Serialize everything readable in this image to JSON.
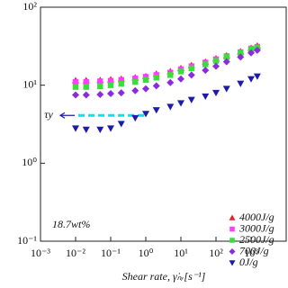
{
  "chart_data": {
    "type": "scatter",
    "log_x": true,
    "log_y": true,
    "x_label": "Shear rate, γ̇ₙᵣ[s⁻¹]",
    "annotation": "18.7wt%",
    "yield_stress": {
      "label": "τy",
      "value": 4.1,
      "x": [
        0.012,
        1
      ],
      "color": "#00e5ee"
    },
    "x": [
      0.01,
      0.02,
      0.05,
      0.1,
      0.2,
      0.5,
      1,
      2,
      5,
      10,
      20,
      50,
      100,
      200,
      500,
      1000,
      1500
    ],
    "series": [
      {
        "name": "4000J/g",
        "color": "#e8202a",
        "marker": "triangle-up",
        "values": [
          11.5,
          11.5,
          11.6,
          11.8,
          12,
          12.5,
          13,
          14,
          15,
          16.5,
          18,
          20,
          22,
          24,
          27,
          30,
          32
        ]
      },
      {
        "name": "3000J/g",
        "color": "#ff3cff",
        "marker": "square",
        "values": [
          11,
          11,
          11.2,
          11.4,
          11.7,
          12.2,
          12.8,
          13.5,
          14.5,
          16,
          17.5,
          19.5,
          21.5,
          23.5,
          26.5,
          29.5,
          31
        ]
      },
      {
        "name": "2500J/g",
        "color": "#3ade3a",
        "marker": "square",
        "values": [
          9.5,
          9.5,
          9.7,
          10,
          10.4,
          11,
          11.7,
          12.5,
          13.5,
          15,
          16.5,
          18.5,
          20.5,
          23,
          26,
          29,
          30
        ]
      },
      {
        "name": "700J/g",
        "color": "#8a2be2",
        "marker": "diamond",
        "values": [
          7.5,
          7.5,
          7.6,
          7.8,
          8,
          8.5,
          9,
          9.8,
          10.8,
          12,
          13.5,
          15.5,
          17.5,
          20,
          23,
          26,
          28
        ]
      },
      {
        "name": "0J/g",
        "color": "#1c1ca8",
        "marker": "triangle-down",
        "values": [
          2.8,
          2.7,
          2.7,
          2.8,
          3.2,
          3.8,
          4.3,
          4.8,
          5.3,
          5.9,
          6.5,
          7.2,
          8,
          9,
          10.5,
          12,
          13
        ]
      }
    ],
    "xlim": [
      0.001,
      10000
    ],
    "xticks": [
      {
        "value": 0.001,
        "label": "10⁻³"
      },
      {
        "value": 0.01,
        "label": "10⁻²"
      },
      {
        "value": 0.1,
        "label": "10⁻¹"
      },
      {
        "value": 1,
        "label": "10⁰"
      },
      {
        "value": 10,
        "label": "10¹"
      },
      {
        "value": 100,
        "label": "10²"
      },
      {
        "value": 1000,
        "label": "10³"
      }
    ],
    "ylim": [
      0.1,
      100
    ],
    "yticks": [
      {
        "value": 0.1,
        "label": "10⁻¹"
      },
      {
        "value": 1,
        "label": "10⁰"
      },
      {
        "value": 10,
        "label": "10¹"
      },
      {
        "value": 100,
        "label": "10²"
      }
    ],
    "legend": "lower right"
  }
}
